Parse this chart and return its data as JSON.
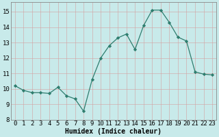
{
  "x": [
    0,
    1,
    2,
    3,
    4,
    5,
    6,
    7,
    8,
    9,
    10,
    11,
    12,
    13,
    14,
    15,
    16,
    17,
    18,
    19,
    20,
    21,
    22,
    23
  ],
  "y": [
    10.2,
    9.9,
    9.75,
    9.75,
    9.7,
    10.1,
    9.55,
    9.35,
    8.55,
    10.6,
    12.0,
    12.8,
    13.3,
    13.55,
    12.55,
    14.1,
    15.1,
    15.1,
    14.3,
    13.35,
    13.1,
    11.1,
    10.95,
    10.9
  ],
  "line_color": "#2e7d6e",
  "marker": "D",
  "marker_size": 2.2,
  "bg_color": "#c8eaea",
  "grid_color_major": "#b0d4d4",
  "grid_color_minor": "#daeaea",
  "xlabel": "Humidex (Indice chaleur)",
  "ylim": [
    8,
    15.6
  ],
  "xlim": [
    -0.5,
    23.5
  ],
  "yticks": [
    8,
    9,
    10,
    11,
    12,
    13,
    14,
    15
  ],
  "xticks": [
    0,
    1,
    2,
    3,
    4,
    5,
    6,
    7,
    8,
    9,
    10,
    11,
    12,
    13,
    14,
    15,
    16,
    17,
    18,
    19,
    20,
    21,
    22,
    23
  ],
  "label_fontsize": 7,
  "tick_fontsize": 6.5
}
